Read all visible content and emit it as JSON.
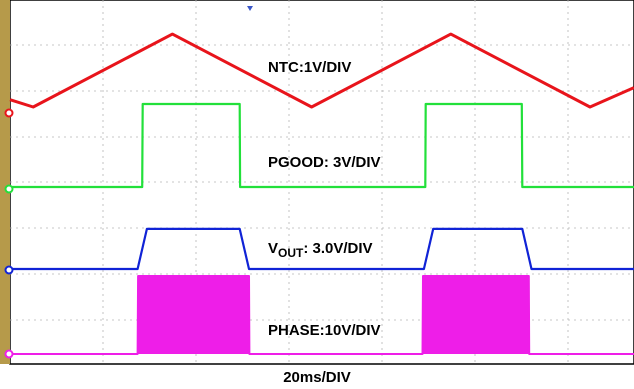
{
  "chart_data": {
    "type": "line",
    "title": "",
    "xlabel": "20ms/DIV",
    "grid": true,
    "x_unit": "ms",
    "x_divisions": 10,
    "time_per_div_ms": 20,
    "series": [
      {
        "name": "NTC:1V/DIV",
        "color": "#e8141b",
        "x": [
          0,
          5,
          35,
          65,
          95,
          125,
          135
        ],
        "y": [
          0.3,
          0,
          3.0,
          0,
          3.0,
          0,
          0.8
        ]
      },
      {
        "name": "PGOOD: 3V/DIV",
        "color": "#22e03a",
        "x": [
          0,
          28.5,
          28.6,
          49.5,
          49.6,
          89.5,
          89.6,
          110.3,
          110.4,
          135
        ],
        "y": [
          0,
          0,
          1.66,
          1.66,
          0,
          0,
          1.66,
          1.66,
          0,
          0
        ]
      },
      {
        "name_main": "V",
        "name_sub": "OUT",
        "name_rest": ": 3.0V/DIV",
        "color": "#1023d6",
        "x": [
          0,
          27.5,
          29.5,
          49.5,
          51.5,
          89.2,
          91.2,
          110.4,
          112.4,
          135
        ],
        "y": [
          0,
          0,
          1.5,
          1.5,
          0,
          0,
          1.5,
          1.5,
          0,
          0
        ]
      },
      {
        "name": "PHASE:10V/DIV",
        "color": "#ee1ee8",
        "x": [
          0,
          27.5,
          27.6,
          51.5,
          51.6,
          88.9,
          89.0,
          111.8,
          111.9,
          135
        ],
        "y": [
          0,
          0,
          1.7,
          1.7,
          0,
          0,
          1.7,
          1.7,
          0,
          0
        ]
      }
    ]
  }
}
